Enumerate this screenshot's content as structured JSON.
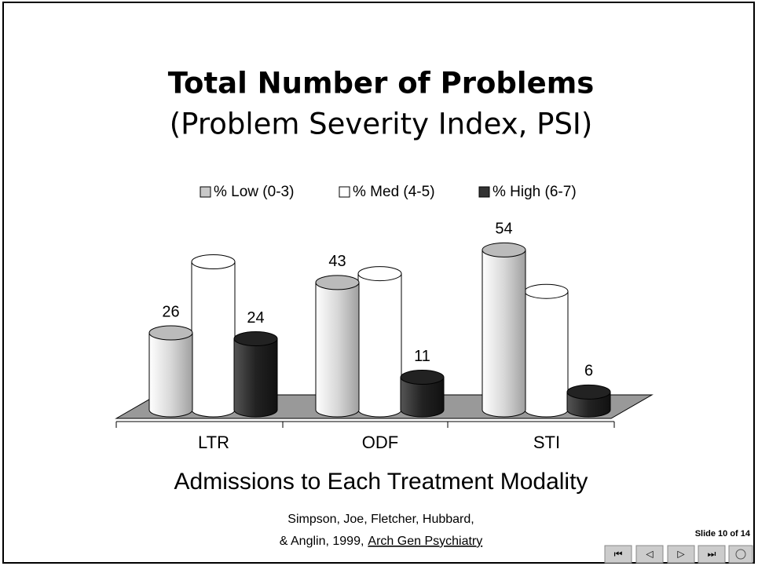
{
  "chart_data": {
    "type": "bar",
    "title": "Total Number of Problems",
    "subtitle": "(Problem Severity Index, PSI)",
    "x_title": "Admissions to Each Treatment Modality",
    "categories": [
      "LTR",
      "ODF",
      "STI"
    ],
    "series": [
      {
        "name": "% Low (0-3)",
        "color": "#c8c8c8",
        "values": [
          26,
          43,
          54
        ],
        "show_labels": true
      },
      {
        "name": "% Med (4-5)",
        "color": "#ffffff",
        "values": [
          50,
          46,
          40
        ],
        "show_labels": false
      },
      {
        "name": "% High (6-7)",
        "color": "#333333",
        "values": [
          24,
          11,
          6
        ],
        "show_labels": true
      }
    ]
  },
  "slide": {
    "citation": {
      "line1": "Simpson, Joe, Fletcher, Hubbard,",
      "line2": "& Anglin, 1999,",
      "journal": "Arch Gen Psychiatry"
    },
    "slide_number": "Slide 10 of 14"
  }
}
